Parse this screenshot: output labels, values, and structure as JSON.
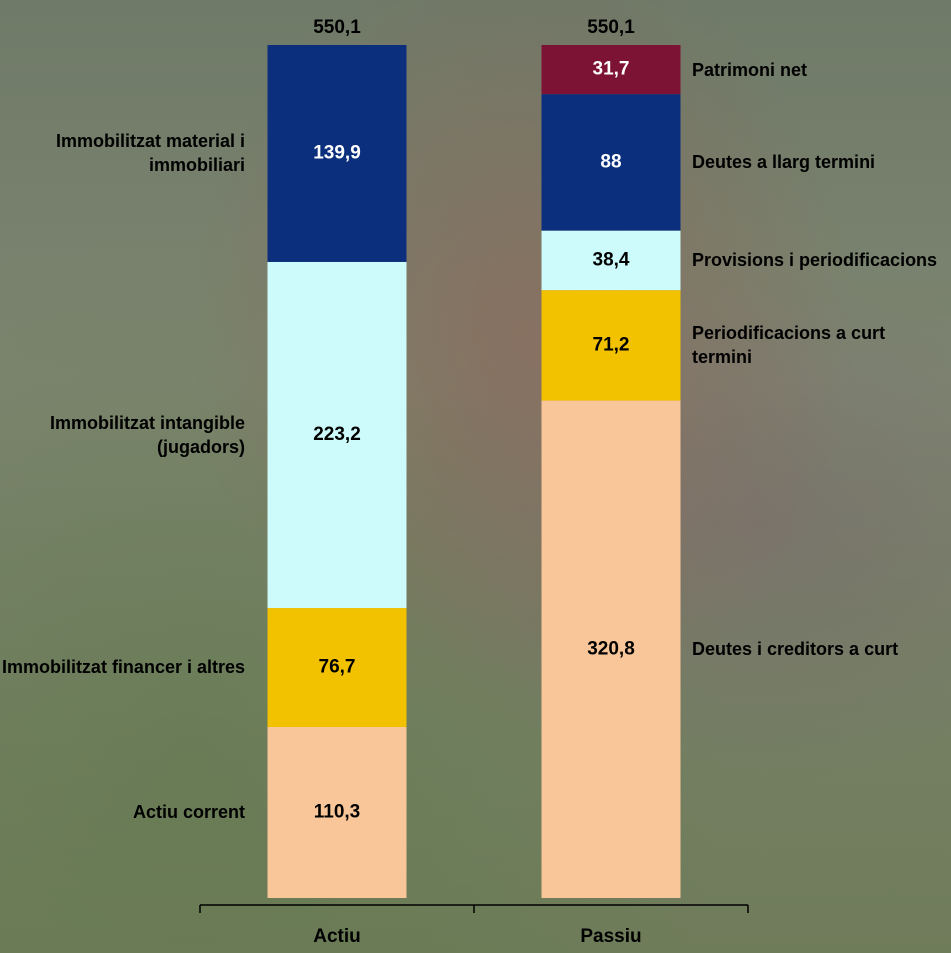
{
  "chart_data": {
    "type": "stacked_bar",
    "categories": [
      "Actiu",
      "Passiu"
    ],
    "ylim": [
      0,
      550.1
    ],
    "totals": [
      550.1,
      550.1
    ],
    "totals_labels": [
      "550,1",
      "550,1"
    ],
    "series": [
      {
        "name": "Actiu corrent",
        "color": "#f9c699",
        "values": [
          110.3,
          null
        ],
        "value_labels": [
          "110,3",
          null
        ]
      },
      {
        "name": "Immobilitzat financer i altres",
        "color": "#f2c200",
        "values": [
          76.7,
          null
        ],
        "value_labels": [
          "76,7",
          null
        ]
      },
      {
        "name": "Immobilitzat intangible (jugadors)",
        "color": "#cdfafa",
        "values": [
          223.2,
          null
        ],
        "value_labels": [
          "223,2",
          null
        ]
      },
      {
        "name": "Immobilitzat material i immobiliari",
        "color": "#0b2f7c",
        "values": [
          139.9,
          null
        ],
        "value_labels": [
          "139,9",
          null
        ]
      },
      {
        "name": "Deutes i creditors a curt",
        "color": "#f9c699",
        "values": [
          null,
          320.8
        ],
        "value_labels": [
          null,
          "320,8"
        ]
      },
      {
        "name": "Periodificacions a curt termini",
        "color": "#f2c200",
        "values": [
          null,
          71.2
        ],
        "value_labels": [
          null,
          "71,2"
        ]
      },
      {
        "name": "Provisions i periodificacions",
        "color": "#cdfafa",
        "values": [
          null,
          38.4
        ],
        "value_labels": [
          null,
          "38,4"
        ]
      },
      {
        "name": "Deutes a llarg termini",
        "color": "#0b2f7c",
        "values": [
          null,
          88
        ],
        "value_labels": [
          null,
          "88"
        ]
      },
      {
        "name": "Patrimoni net",
        "color": "#7c1234",
        "values": [
          null,
          31.7
        ],
        "value_labels": [
          null,
          "31,7"
        ]
      }
    ]
  }
}
